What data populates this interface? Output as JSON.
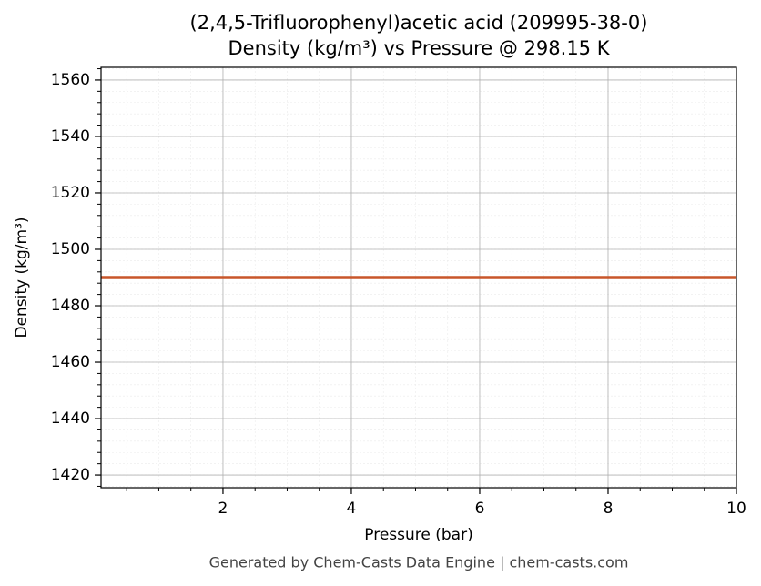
{
  "chart_data": {
    "type": "line",
    "title": "(2,4,5-Trifluorophenyl)acetic acid (209995-38-0)",
    "subtitle": "Density (kg/m³) vs Pressure @ 298.15 K",
    "x_label": "Pressure (bar)",
    "y_label": "Density (kg/m³)",
    "footer": "Generated by Chem-Casts Data Engine | chem-casts.com",
    "x": [
      0.1,
      10
    ],
    "series": [
      {
        "name": "Density",
        "color": "#c8562a",
        "values": [
          1490,
          1490
        ]
      }
    ],
    "xlim": [
      0.1,
      10
    ],
    "xticks": [
      2,
      4,
      6,
      8,
      10
    ],
    "ylim": [
      1415.5,
      1564.5
    ],
    "yticks": [
      1420,
      1440,
      1460,
      1480,
      1500,
      1520,
      1540,
      1560
    ],
    "grid": true,
    "minor_grid": true
  }
}
